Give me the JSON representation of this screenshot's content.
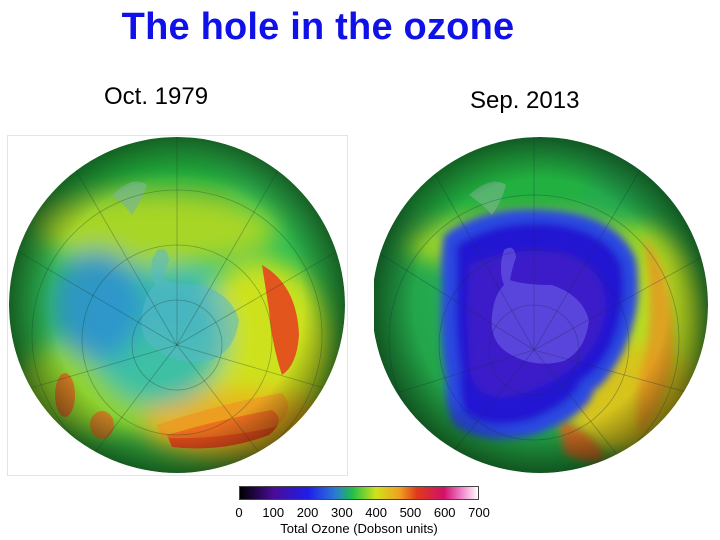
{
  "title": "The hole in the ozone",
  "panels": [
    {
      "caption": "Oct. 1979"
    },
    {
      "caption": "Sep. 2013"
    }
  ],
  "colorbar": {
    "label": "Total Ozone (Dobson units)",
    "ticks": [
      "0",
      "100",
      "200",
      "300",
      "400",
      "500",
      "600",
      "700"
    ],
    "range": [
      0,
      700
    ],
    "stops": [
      {
        "value": 0,
        "color": "#000000"
      },
      {
        "value": 100,
        "color": "#4a0c9a"
      },
      {
        "value": 200,
        "color": "#1e1ee8"
      },
      {
        "value": 280,
        "color": "#2a7ad6"
      },
      {
        "value": 330,
        "color": "#1fbf4a"
      },
      {
        "value": 400,
        "color": "#cfe21a"
      },
      {
        "value": 470,
        "color": "#f0a020"
      },
      {
        "value": 520,
        "color": "#e03a1a"
      },
      {
        "value": 600,
        "color": "#d0106a"
      },
      {
        "value": 650,
        "color": "#f080c8"
      },
      {
        "value": 700,
        "color": "#ffffff"
      }
    ]
  }
}
